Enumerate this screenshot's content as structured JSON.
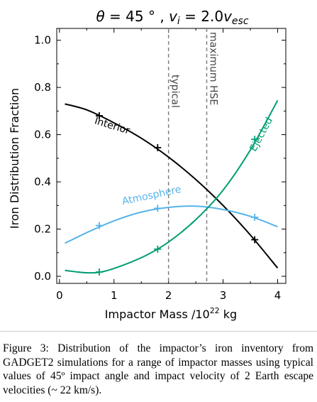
{
  "chart_data": {
    "type": "line",
    "title": "θ = 45 ° , v_i = 2.0v_esc",
    "title_parts": {
      "theta": "θ",
      "eq1": " = 45 ° ",
      "comma": " , ",
      "v": "v",
      "i": "i",
      "eq2": " = 2.0",
      "v2": "v",
      "esc": "esc"
    },
    "xlabel": "Impactor Mass /10²² kg",
    "xlabel_parts": {
      "main": "Impactor Mass /10",
      "exp": "22",
      "unit": " kg"
    },
    "ylabel": "Iron Distribution Fraction",
    "xlim": [
      -0.05,
      4.15
    ],
    "ylim": [
      -0.03,
      1.05
    ],
    "xticks": [
      0,
      1,
      2,
      3,
      4
    ],
    "yticks": [
      0.0,
      0.2,
      0.4,
      0.6,
      0.8,
      1.0
    ],
    "ytick_labels": [
      "0.0",
      "0.2",
      "0.4",
      "0.6",
      "0.8",
      "1.0"
    ],
    "series": [
      {
        "name": "Interior",
        "color": "#000000",
        "curve": [
          [
            0.1,
            0.73
          ],
          [
            0.5,
            0.705
          ],
          [
            1.0,
            0.65
          ],
          [
            1.5,
            0.585
          ],
          [
            2.0,
            0.505
          ],
          [
            2.5,
            0.41
          ],
          [
            3.0,
            0.3
          ],
          [
            3.5,
            0.175
          ],
          [
            4.0,
            0.035
          ]
        ],
        "markers": [
          [
            0.73,
            0.68
          ],
          [
            1.8,
            0.545
          ],
          [
            3.58,
            0.155
          ]
        ],
        "label_x": 0.95,
        "label_y": 0.625,
        "label_angle": 17
      },
      {
        "name": "Atmosphere",
        "color": "#56b4e9",
        "curve": [
          [
            0.1,
            0.14
          ],
          [
            0.5,
            0.185
          ],
          [
            1.0,
            0.235
          ],
          [
            1.5,
            0.272
          ],
          [
            2.0,
            0.292
          ],
          [
            2.5,
            0.297
          ],
          [
            3.0,
            0.283
          ],
          [
            3.5,
            0.254
          ],
          [
            4.0,
            0.21
          ]
        ],
        "markers": [
          [
            0.73,
            0.215
          ],
          [
            1.8,
            0.288
          ],
          [
            3.58,
            0.25
          ]
        ],
        "label_x": 1.7,
        "label_y": 0.33,
        "label_angle": -12
      },
      {
        "name": "Ejected",
        "color": "#009e73",
        "curve": [
          [
            0.1,
            0.025
          ],
          [
            0.5,
            0.015
          ],
          [
            0.8,
            0.02
          ],
          [
            1.2,
            0.05
          ],
          [
            1.6,
            0.09
          ],
          [
            2.0,
            0.145
          ],
          [
            2.5,
            0.24
          ],
          [
            3.0,
            0.365
          ],
          [
            3.5,
            0.535
          ],
          [
            4.0,
            0.745
          ]
        ],
        "markers": [
          [
            0.73,
            0.018
          ],
          [
            1.8,
            0.115
          ],
          [
            3.58,
            0.58
          ]
        ],
        "label_x": 3.75,
        "label_y": 0.595,
        "label_angle": -62
      }
    ],
    "vlines": [
      {
        "x": 2.0,
        "label": "typical",
        "color": "#808080"
      },
      {
        "x": 2.7,
        "label": "maximum HSE",
        "color": "#808080"
      }
    ]
  },
  "caption": "Figure 3: Distribution of the impactor’s iron inventory from GADGET2 simulations for a range of impactor masses using typical values of 45º impact angle and impact velocity of 2 Earth escape velocities (~ 22 km/s)."
}
